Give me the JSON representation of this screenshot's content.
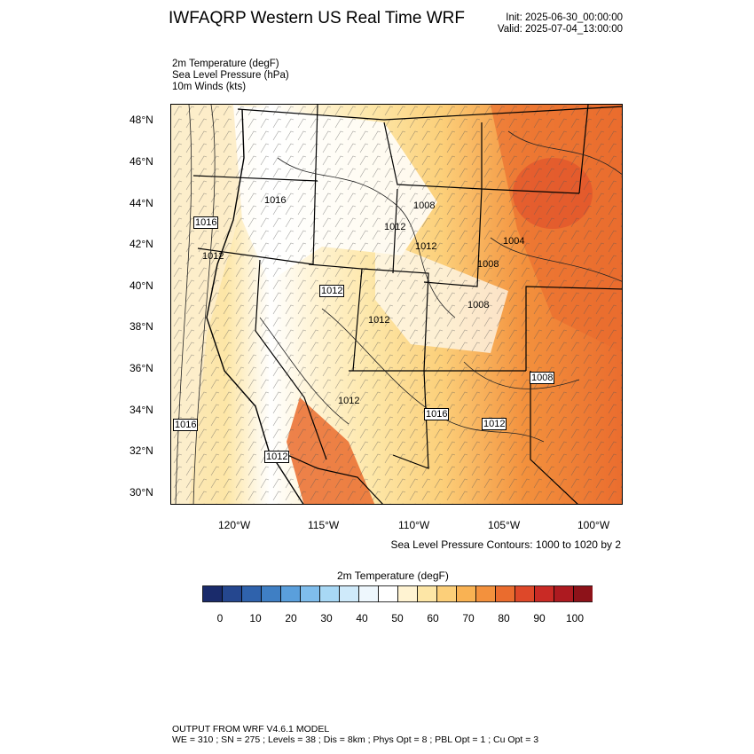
{
  "header": {
    "title": "IWFAQRP Western US Real Time WRF",
    "init": "Init: 2025-06-30_00:00:00",
    "valid": "Valid: 2025-07-04_13:00:00"
  },
  "fields": [
    "2m Temperature   (degF)",
    "Sea Level Pressure   (hPa)",
    "10m Winds   (kts)"
  ],
  "map": {
    "lat_labels": [
      "48°N",
      "46°N",
      "44°N",
      "42°N",
      "40°N",
      "38°N",
      "36°N",
      "34°N",
      "32°N",
      "30°N"
    ],
    "lon_labels": [
      "120°W",
      "115°W",
      "110°W",
      "105°W",
      "100°W"
    ],
    "pressure_labels": [
      "1016",
      "1016",
      "1012",
      "1008",
      "1012",
      "1012",
      "1008",
      "1008",
      "1004",
      "1012",
      "1012",
      "1016",
      "1012",
      "1008",
      "1016",
      "1012",
      "1008",
      "1012"
    ],
    "contour_note": "Sea Level Pressure Contours: 1000 to 1020 by 2"
  },
  "colorbar": {
    "title": "2m Temperature  (degF)",
    "colors": [
      "#1a2b6b",
      "#25478f",
      "#2f62ac",
      "#3f7fc4",
      "#5a9fdc",
      "#7fbdec",
      "#a8d8f5",
      "#cfeafa",
      "#eef7fd",
      "#ffffff",
      "#fff3d2",
      "#fde6a6",
      "#fccf79",
      "#f9b253",
      "#f3913d",
      "#ea6c2e",
      "#de4829",
      "#c92a25",
      "#ad1a20",
      "#8d1219"
    ],
    "labels": [
      "0",
      "10",
      "20",
      "30",
      "40",
      "50",
      "60",
      "70",
      "80",
      "90",
      "100"
    ]
  },
  "footer": {
    "line1": "OUTPUT FROM WRF V4.6.1 MODEL",
    "line2": "WE = 310 ; SN = 275 ; Levels = 38 ; Dis = 8km ; Phys Opt = 8 ; PBL Opt = 1 ; Cu Opt = 3"
  }
}
